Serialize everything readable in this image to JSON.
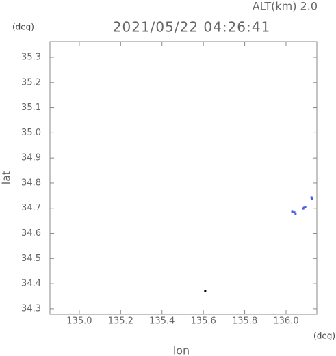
{
  "chart_data": {
    "type": "scatter",
    "title": "2021/05/22 04:26:41",
    "subtitle": "ALT(km) 2.0",
    "y_unit": "(deg)",
    "x_unit": "(deg)",
    "x_label": "lon",
    "y_label": "lat",
    "xlim": [
      134.858,
      136.149
    ],
    "ylim": [
      34.278,
      35.3625
    ],
    "xticks": [
      {
        "value": 135.0,
        "label": "135.0"
      },
      135.2,
      135.4,
      135.6,
      135.8,
      {
        "value": 136.0,
        "label": "136.0"
      }
    ],
    "yticks": [
      34.3,
      34.4,
      34.5,
      34.6,
      34.7,
      34.8,
      34.9,
      {
        "value": 35.0,
        "label": "35.0"
      },
      35.1,
      35.2,
      35.3
    ],
    "series": [
      {
        "color": "#4b5be6",
        "x": [
          136.123,
          136.125,
          136.093,
          136.083,
          136.087,
          136.03,
          136.046,
          136.04
        ],
        "values": [
          34.743,
          34.738,
          34.705,
          34.699,
          34.702,
          34.686,
          34.678,
          34.684
        ]
      },
      {
        "color": "#000000",
        "x": [
          135.609
        ],
        "values": [
          34.371
        ]
      }
    ]
  }
}
